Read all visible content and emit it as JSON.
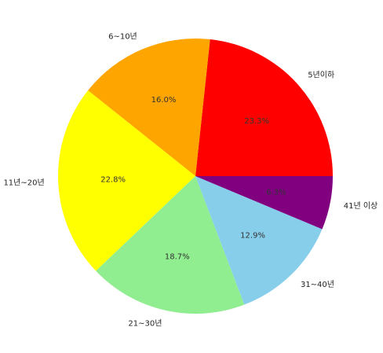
{
  "chart_data": {
    "type": "pie",
    "title": "",
    "start_angle_deg": 0,
    "direction": "counterclockwise",
    "slices": [
      {
        "label": "5년이하",
        "value": 23.3,
        "value_label": "23.3%",
        "color": "#ff0000"
      },
      {
        "label": "6~10년",
        "value": 16.0,
        "value_label": "16.0%",
        "color": "#ffa500"
      },
      {
        "label": "11년~20년",
        "value": 22.8,
        "value_label": "22.8%",
        "color": "#ffff00"
      },
      {
        "label": "21~30년",
        "value": 18.7,
        "value_label": "18.7%",
        "color": "#90ee90"
      },
      {
        "label": "31~40년",
        "value": 12.9,
        "value_label": "12.9%",
        "color": "#87ceeb"
      },
      {
        "label": "41년 이상",
        "value": 6.3,
        "value_label": "6.3%",
        "color": "#800080"
      }
    ]
  }
}
